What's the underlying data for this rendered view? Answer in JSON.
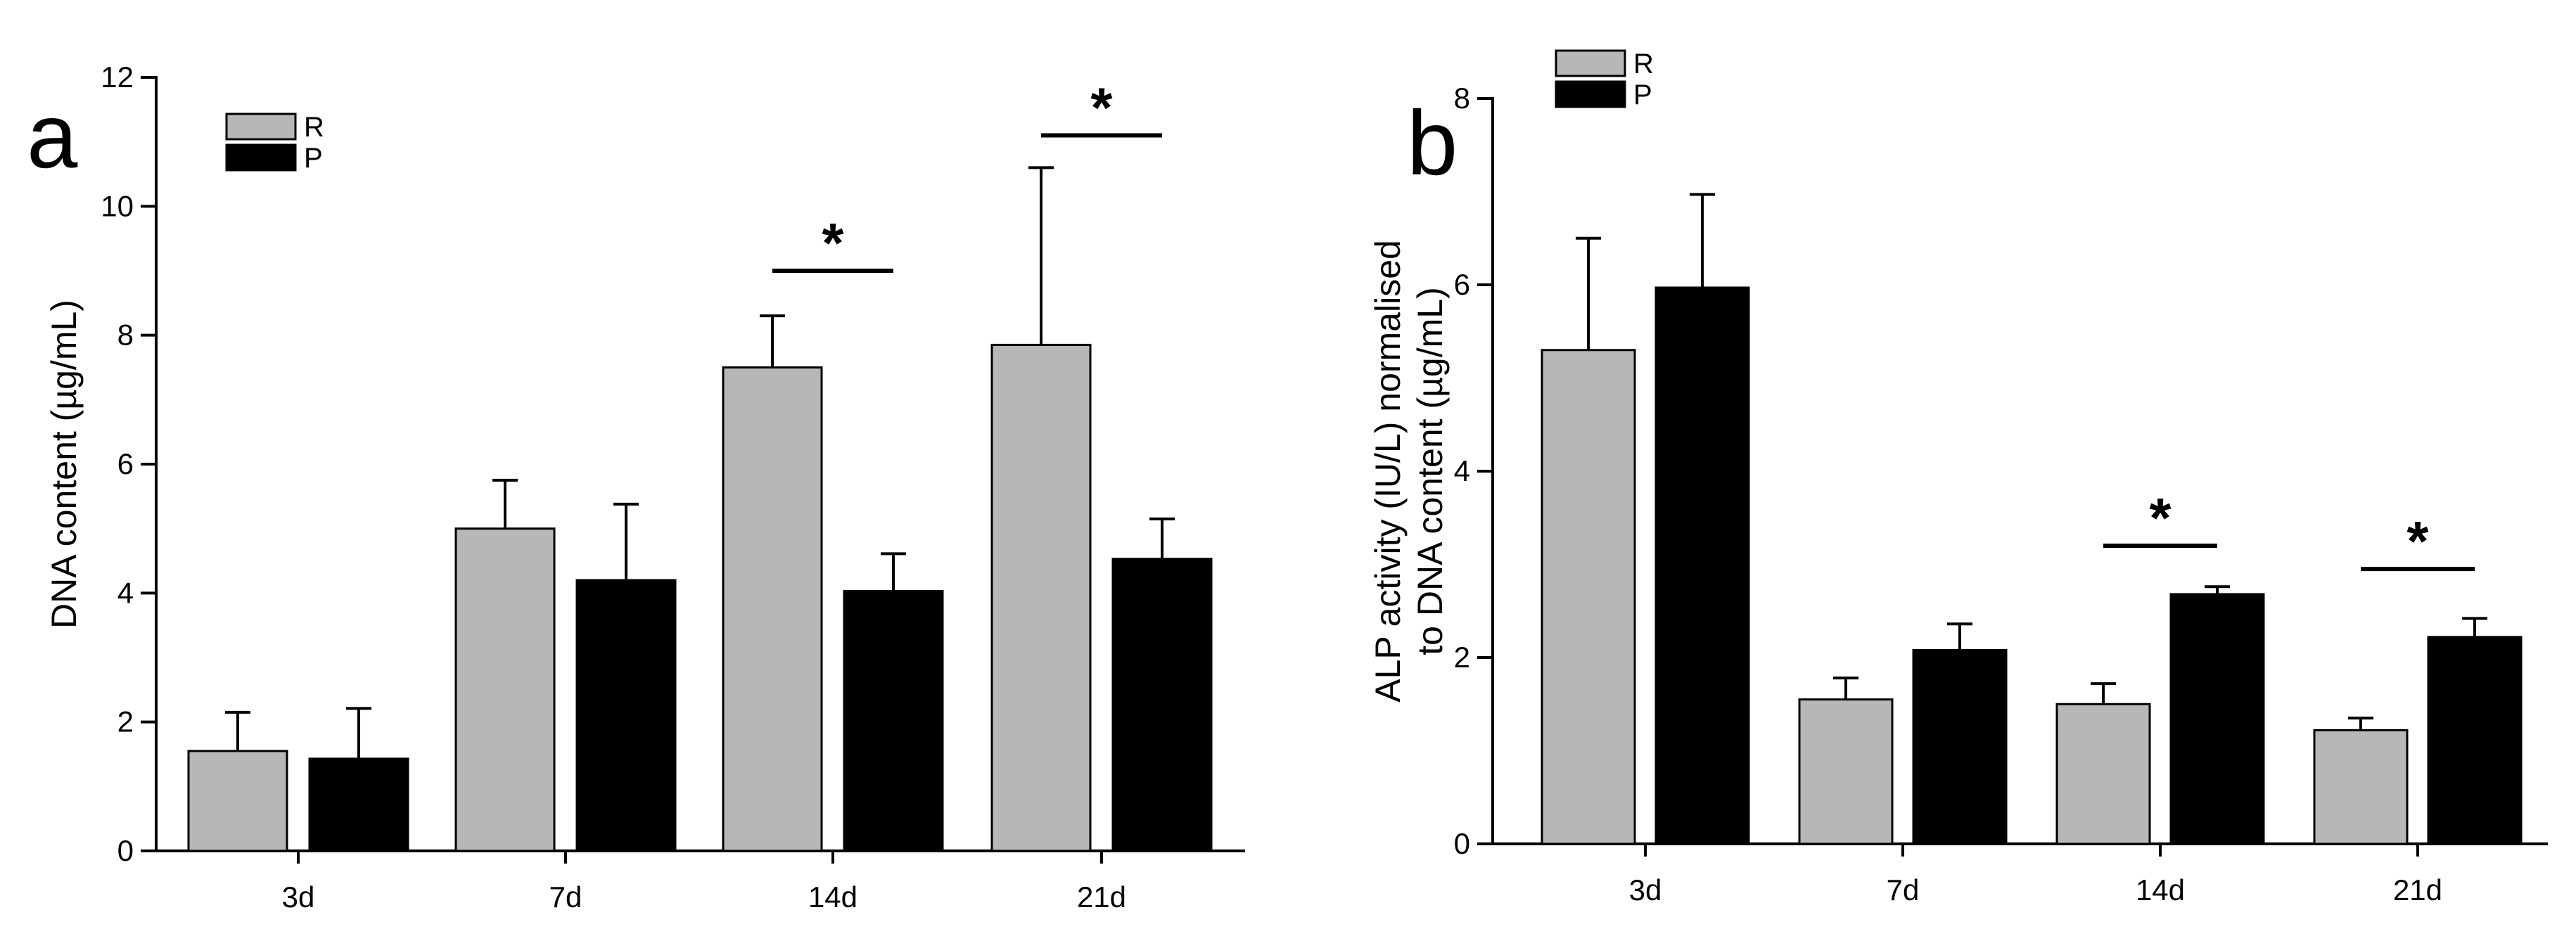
{
  "chart_data": [
    {
      "type": "bar",
      "panel_label": "a",
      "categories": [
        "3d",
        "7d",
        "14d",
        "21d"
      ],
      "series": [
        {
          "name": "R",
          "color": "#b7b7b7",
          "values": [
            1.55,
            5.0,
            7.5,
            7.85
          ],
          "errors": [
            0.6,
            0.75,
            0.8,
            2.75
          ]
        },
        {
          "name": "P",
          "color": "#000000",
          "values": [
            1.43,
            4.2,
            4.03,
            4.53
          ],
          "errors": [
            0.78,
            1.18,
            0.58,
            0.62
          ]
        }
      ],
      "significance": [
        {
          "category": "14d",
          "label": "*",
          "y": 9.0
        },
        {
          "category": "21d",
          "label": "*",
          "y": 11.1
        }
      ],
      "ylabel": "DNA content (µg/mL)",
      "xlabel": "",
      "ylim": [
        0,
        12
      ],
      "yticks": [
        0,
        2,
        4,
        6,
        8,
        10,
        12
      ],
      "legend_position": "top-left"
    },
    {
      "type": "bar",
      "panel_label": "b",
      "categories": [
        "3d",
        "7d",
        "14d",
        "21d"
      ],
      "series": [
        {
          "name": "R",
          "color": "#b7b7b7",
          "values": [
            5.3,
            1.55,
            1.5,
            1.22
          ],
          "errors": [
            1.2,
            0.23,
            0.22,
            0.13
          ]
        },
        {
          "name": "P",
          "color": "#000000",
          "values": [
            5.97,
            2.08,
            2.68,
            2.22
          ],
          "errors": [
            1.0,
            0.28,
            0.08,
            0.2
          ]
        }
      ],
      "significance": [
        {
          "category": "14d",
          "label": "*",
          "y": 3.2
        },
        {
          "category": "21d",
          "label": "*",
          "y": 2.95
        }
      ],
      "ylabel": "ALP activity (IU/L) normalised to DNA content (µg/mL)",
      "ylabel_lines": [
        "ALP activity (IU/L) normalised",
        "to DNA content (µg/mL)"
      ],
      "xlabel": "",
      "ylim": [
        0,
        8
      ],
      "yticks": [
        0,
        2,
        4,
        6,
        8
      ],
      "legend_position": "top-left"
    }
  ]
}
